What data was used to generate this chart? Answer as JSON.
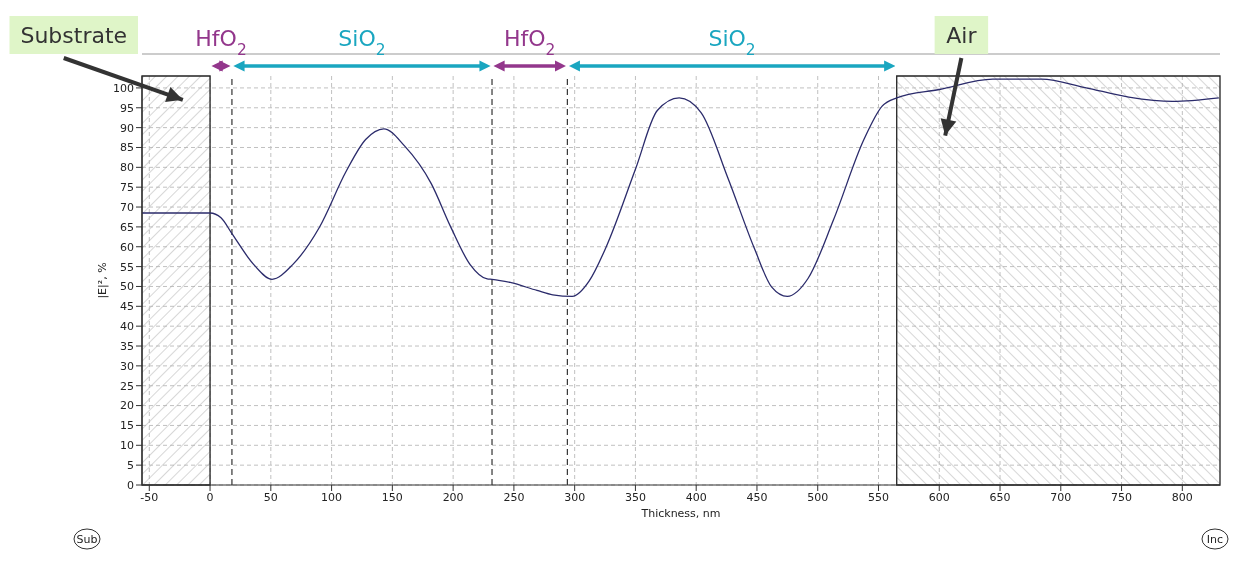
{
  "chart_data": {
    "type": "line",
    "xlabel": "Thickness, nm",
    "ylabel": "|E|², %",
    "xlim": [
      -56,
      831
    ],
    "ylim": [
      0,
      103
    ],
    "xticks": [
      -50,
      0,
      50,
      100,
      150,
      200,
      250,
      300,
      350,
      400,
      450,
      500,
      550,
      600,
      650,
      700,
      750,
      800
    ],
    "yticks": [
      0,
      5,
      10,
      15,
      20,
      25,
      30,
      35,
      40,
      45,
      50,
      55,
      60,
      65,
      70,
      75,
      80,
      85,
      90,
      95,
      100
    ],
    "grid": true,
    "marker": "none",
    "series": [
      {
        "color": "#2b2b6b",
        "x": [
          -56,
          0,
          9,
          18,
          36,
          51,
          68,
          90,
          112,
          128,
          143,
          160,
          182,
          198,
          214,
          228,
          232,
          247,
          269,
          282,
          298,
          312,
          326,
          350,
          368,
          386,
          404,
          426,
          448,
          462,
          475,
          492,
          513,
          538,
          553,
          565,
          600,
          644,
          684,
          720,
          756,
          792,
          830
        ],
        "values": [
          68.5,
          68.5,
          67.3,
          63.3,
          55.5,
          51.8,
          55.5,
          64.9,
          79,
          87,
          89.7,
          85.4,
          75.9,
          65,
          55.5,
          51.9,
          51.8,
          51,
          49,
          47.9,
          47.5,
          51.4,
          60,
          79.5,
          94.3,
          97.5,
          93.8,
          77.4,
          59.5,
          49.9,
          47.5,
          52,
          66.8,
          87,
          95.4,
          97.5,
          99.6,
          102.2,
          102.2,
          100.1,
          97.7,
          96.6,
          97.5
        ]
      }
    ],
    "ref_lines": [
      {
        "axis": "x",
        "value": 18,
        "line_style": "dashed"
      },
      {
        "axis": "x",
        "value": 232,
        "line_style": "dashed"
      },
      {
        "axis": "x",
        "value": 294,
        "line_style": "dashed"
      }
    ],
    "bands": [
      {
        "axis": "x",
        "from": -56,
        "to": 0,
        "label": "Substrate"
      },
      {
        "axis": "x",
        "from": 565,
        "to": 831,
        "label": "Air"
      }
    ],
    "annotations": [
      "HfO$_{2}$",
      "SiO$_{2}$",
      "HfO$_{2}$",
      "SiO$_{2}$",
      "Sub",
      "Inc"
    ]
  }
}
